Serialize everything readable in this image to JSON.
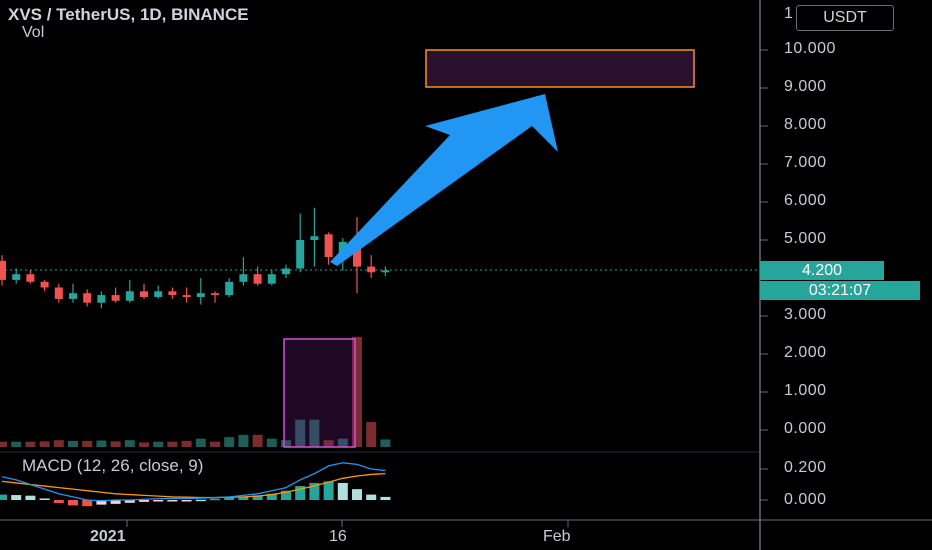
{
  "header": {
    "title": "XVS / TetherUS, 1D, BINANCE",
    "volume_label": "Vol",
    "macd_label": "MACD (12, 26, close, 9)"
  },
  "price_axis": {
    "unit": "USDT",
    "top_partial": "1",
    "labels": [
      "10.000",
      "9.000",
      "8.000",
      "7.000",
      "6.000",
      "5.000",
      "3.000",
      "2.000",
      "1.000",
      "0.000"
    ],
    "current_price": "4.200",
    "countdown": "03:21:07"
  },
  "macd_axis": {
    "labels": [
      "0.200",
      "0.000"
    ]
  },
  "time_axis": {
    "labels": [
      "2021",
      "16",
      "Feb"
    ]
  },
  "colors": {
    "up": "#26a69a",
    "down": "#ef5350",
    "arrow": "#2196f3",
    "target_box_border": "#f7931a",
    "target_box_fill": "#2a0f2e",
    "volume_box_border": "#d051d8",
    "macd_line": "#2196f3",
    "signal_line": "#ff9800"
  },
  "chart_data": {
    "type": "candlestick",
    "ylim": [
      0,
      10.5
    ],
    "candles": [
      {
        "o": 4.45,
        "h": 4.6,
        "l": 3.8,
        "c": 3.95
      },
      {
        "o": 3.95,
        "h": 4.25,
        "l": 3.85,
        "c": 4.1
      },
      {
        "o": 4.1,
        "h": 4.2,
        "l": 3.85,
        "c": 3.9
      },
      {
        "o": 3.9,
        "h": 3.95,
        "l": 3.65,
        "c": 3.75
      },
      {
        "o": 3.75,
        "h": 3.85,
        "l": 3.35,
        "c": 3.45
      },
      {
        "o": 3.45,
        "h": 3.85,
        "l": 3.35,
        "c": 3.6
      },
      {
        "o": 3.6,
        "h": 3.7,
        "l": 3.25,
        "c": 3.35
      },
      {
        "o": 3.35,
        "h": 3.65,
        "l": 3.2,
        "c": 3.55
      },
      {
        "o": 3.55,
        "h": 3.75,
        "l": 3.35,
        "c": 3.4
      },
      {
        "o": 3.4,
        "h": 3.95,
        "l": 3.35,
        "c": 3.65
      },
      {
        "o": 3.65,
        "h": 3.85,
        "l": 3.45,
        "c": 3.5
      },
      {
        "o": 3.5,
        "h": 3.8,
        "l": 3.45,
        "c": 3.65
      },
      {
        "o": 3.65,
        "h": 3.75,
        "l": 3.45,
        "c": 3.55
      },
      {
        "o": 3.55,
        "h": 3.75,
        "l": 3.35,
        "c": 3.5
      },
      {
        "o": 3.5,
        "h": 4.0,
        "l": 3.3,
        "c": 3.6
      },
      {
        "o": 3.6,
        "h": 3.65,
        "l": 3.35,
        "c": 3.55
      },
      {
        "o": 3.55,
        "h": 4.0,
        "l": 3.5,
        "c": 3.9
      },
      {
        "o": 3.9,
        "h": 4.55,
        "l": 3.8,
        "c": 4.1
      },
      {
        "o": 4.1,
        "h": 4.3,
        "l": 3.8,
        "c": 3.85
      },
      {
        "o": 3.85,
        "h": 4.2,
        "l": 3.8,
        "c": 4.1
      },
      {
        "o": 4.1,
        "h": 4.35,
        "l": 4.0,
        "c": 4.25
      },
      {
        "o": 4.25,
        "h": 5.7,
        "l": 4.15,
        "c": 5.0
      },
      {
        "o": 5.0,
        "h": 5.85,
        "l": 4.3,
        "c": 5.1
      },
      {
        "o": 5.15,
        "h": 5.2,
        "l": 4.35,
        "c": 4.55
      },
      {
        "o": 4.55,
        "h": 5.05,
        "l": 4.2,
        "c": 4.95
      },
      {
        "o": 5.0,
        "h": 5.6,
        "l": 3.6,
        "c": 4.3
      },
      {
        "o": 4.3,
        "h": 4.6,
        "l": 4.0,
        "c": 4.15
      },
      {
        "o": 4.15,
        "h": 4.3,
        "l": 4.05,
        "c": 4.2
      }
    ],
    "volume": [
      {
        "v": 0.14,
        "up": false
      },
      {
        "v": 0.14,
        "up": true
      },
      {
        "v": 0.14,
        "up": false
      },
      {
        "v": 0.15,
        "up": false
      },
      {
        "v": 0.18,
        "up": false
      },
      {
        "v": 0.16,
        "up": true
      },
      {
        "v": 0.16,
        "up": false
      },
      {
        "v": 0.17,
        "up": true
      },
      {
        "v": 0.15,
        "up": false
      },
      {
        "v": 0.18,
        "up": true
      },
      {
        "v": 0.12,
        "up": false
      },
      {
        "v": 0.14,
        "up": true
      },
      {
        "v": 0.14,
        "up": false
      },
      {
        "v": 0.16,
        "up": false
      },
      {
        "v": 0.22,
        "up": true
      },
      {
        "v": 0.14,
        "up": false
      },
      {
        "v": 0.26,
        "up": true
      },
      {
        "v": 0.32,
        "up": true
      },
      {
        "v": 0.32,
        "up": false
      },
      {
        "v": 0.22,
        "up": true
      },
      {
        "v": 0.18,
        "up": true
      },
      {
        "v": 0.72,
        "up": true
      },
      {
        "v": 0.72,
        "up": true
      },
      {
        "v": 0.18,
        "up": false
      },
      {
        "v": 0.22,
        "up": true
      },
      {
        "v": 2.9,
        "up": false
      },
      {
        "v": 0.66,
        "up": false
      },
      {
        "v": 0.2,
        "up": true
      }
    ],
    "macd": {
      "ylim": [
        -0.06,
        0.3
      ],
      "histogram": [
        0.035,
        0.032,
        0.028,
        0.01,
        -0.02,
        -0.035,
        -0.04,
        -0.03,
        -0.025,
        -0.018,
        -0.012,
        -0.008,
        -0.005,
        -0.004,
        0.002,
        0.008,
        0.015,
        0.02,
        0.03,
        0.04,
        0.06,
        0.09,
        0.11,
        0.12,
        0.11,
        0.07,
        0.035,
        0.02
      ],
      "macd_line": [
        0.15,
        0.13,
        0.1,
        0.07,
        0.04,
        0.02,
        0.0,
        -0.005,
        0.0,
        0.0,
        0.005,
        0.008,
        0.01,
        0.01,
        0.012,
        0.015,
        0.02,
        0.03,
        0.04,
        0.06,
        0.08,
        0.13,
        0.17,
        0.22,
        0.24,
        0.23,
        0.2,
        0.19
      ],
      "signal_line": [
        0.12,
        0.11,
        0.1,
        0.09,
        0.08,
        0.07,
        0.06,
        0.05,
        0.04,
        0.035,
        0.03,
        0.025,
        0.02,
        0.018,
        0.016,
        0.016,
        0.018,
        0.02,
        0.025,
        0.035,
        0.05,
        0.07,
        0.09,
        0.115,
        0.14,
        0.155,
        0.165,
        0.17
      ]
    }
  }
}
